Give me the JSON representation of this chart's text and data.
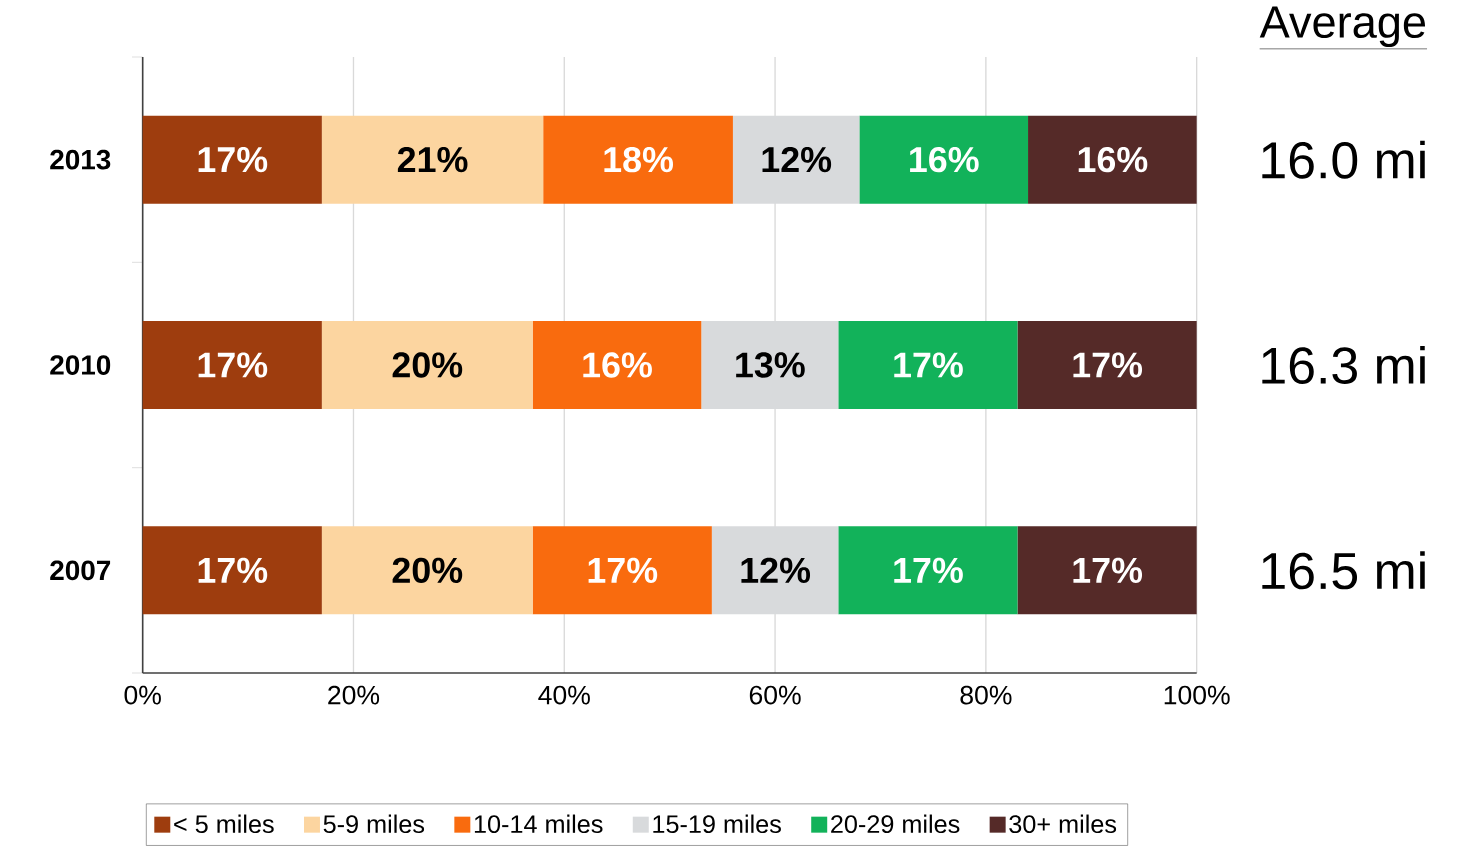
{
  "chart_data": {
    "type": "bar",
    "orientation": "horizontal",
    "stacked": true,
    "categories": [
      "2013",
      "2010",
      "2007"
    ],
    "series": [
      {
        "name": "< 5 miles",
        "color": "#9e3d0e",
        "values": [
          17,
          17,
          17
        ],
        "value_labels": [
          "17%",
          "17%",
          "17%"
        ]
      },
      {
        "name": "5-9 miles",
        "color": "#fcd5a0",
        "values": [
          21,
          20,
          20
        ],
        "value_labels": [
          "21%",
          "20%",
          "20%"
        ]
      },
      {
        "name": "10-14 miles",
        "color": "#f96b0e",
        "values": [
          18,
          16,
          17
        ],
        "value_labels": [
          "18%",
          "16%",
          "17%"
        ]
      },
      {
        "name": "15-19 miles",
        "color": "#d8dadc",
        "values": [
          12,
          13,
          12
        ],
        "value_labels": [
          "12%",
          "13%",
          "12%"
        ]
      },
      {
        "name": "20-29 miles",
        "color": "#12b25a",
        "values": [
          16,
          17,
          17
        ],
        "value_labels": [
          "16%",
          "17%",
          "17%"
        ]
      },
      {
        "name": "30+ miles",
        "color": "#552a28",
        "values": [
          16,
          17,
          17
        ],
        "value_labels": [
          "16%",
          "17%",
          "17%"
        ]
      }
    ],
    "xlim": [
      0,
      100
    ],
    "xticks": [
      {
        "value": 0,
        "label": "0%"
      },
      {
        "value": 20,
        "label": "20%"
      },
      {
        "value": 40,
        "label": "40%"
      },
      {
        "value": 60,
        "label": "60%"
      },
      {
        "value": 80,
        "label": "80%"
      },
      {
        "value": 100,
        "label": "100%"
      }
    ],
    "grid": "x",
    "legend": "bottom",
    "annotations": [
      "Average",
      "16.0 mi",
      "16.3 mi",
      "16.5 mi"
    ]
  }
}
